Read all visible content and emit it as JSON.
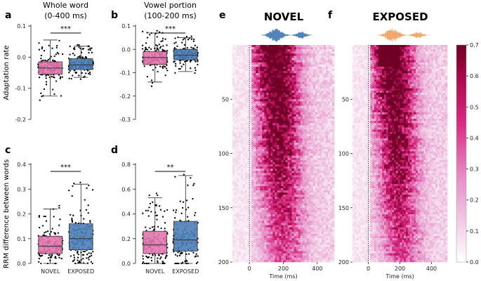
{
  "chart_data": [
    {
      "type": "box",
      "panel": "a",
      "title": "Whole word\n(0-400 ms)",
      "ylabel": "Adaptation rate",
      "ylim": [
        -0.2,
        0.1
      ],
      "yticks": [
        "-0.2",
        "-0.1",
        "0.0",
        "0.1"
      ],
      "ytick_values": [
        -0.2,
        -0.1,
        0.0,
        0.1
      ],
      "categories": [
        "NOVEL",
        "EXPOSED"
      ],
      "boxes": [
        {
          "name": "NOVEL",
          "color": "#E377B0",
          "whisker_low": -0.125,
          "q1": -0.055,
          "median": -0.035,
          "q3": -0.015,
          "whisker_high": 0.055
        },
        {
          "name": "EXPOSED",
          "color": "#4C7FB8",
          "whisker_low": -0.065,
          "q1": -0.04,
          "median": -0.025,
          "q3": -0.005,
          "whisker_high": 0.035
        }
      ],
      "significance": "***"
    },
    {
      "type": "box",
      "panel": "b",
      "title": "Vowel portion\n(100-200 ms)",
      "ylabel": "",
      "ylim": [
        -0.3,
        0.1
      ],
      "yticks": [
        "-0.3",
        "-0.2",
        "-0.1",
        "0.0",
        "0.1"
      ],
      "ytick_values": [
        -0.3,
        -0.2,
        -0.1,
        0.0,
        0.1
      ],
      "categories": [
        "NOVEL",
        "EXPOSED"
      ],
      "boxes": [
        {
          "name": "NOVEL",
          "color": "#E377B0",
          "whisker_low": -0.14,
          "q1": -0.065,
          "median": -0.035,
          "q3": -0.01,
          "whisker_high": 0.07
        },
        {
          "name": "EXPOSED",
          "color": "#4C7FB8",
          "whisker_low": -0.095,
          "q1": -0.045,
          "median": -0.025,
          "q3": 0.0,
          "whisker_high": 0.05
        }
      ],
      "significance": "***"
    },
    {
      "type": "box",
      "panel": "c",
      "title": "",
      "ylabel": "RRM difference between words",
      "ylim": [
        0.0,
        0.4
      ],
      "yticks": [
        "0.0",
        "0.1",
        "0.2",
        "0.3",
        "0.4"
      ],
      "ytick_values": [
        0.0,
        0.1,
        0.2,
        0.3,
        0.4
      ],
      "categories": [
        "NOVEL",
        "EXPOSED"
      ],
      "boxes": [
        {
          "name": "NOVEL",
          "color": "#E377B0",
          "whisker_low": 0.0,
          "q1": 0.04,
          "median": 0.07,
          "q3": 0.11,
          "whisker_high": 0.22
        },
        {
          "name": "EXPOSED",
          "color": "#4C7FB8",
          "whisker_low": 0.0,
          "q1": 0.055,
          "median": 0.1,
          "q3": 0.16,
          "whisker_high": 0.32
        }
      ],
      "significance": "***"
    },
    {
      "type": "box",
      "panel": "d",
      "title": "",
      "ylabel": "",
      "ylim": [
        0.0,
        0.8
      ],
      "yticks": [
        "0.0",
        "0.2",
        "0.4",
        "0.6",
        "0.8"
      ],
      "ytick_values": [
        0.0,
        0.2,
        0.4,
        0.6,
        0.8
      ],
      "categories": [
        "NOVEL",
        "EXPOSED"
      ],
      "boxes": [
        {
          "name": "NOVEL",
          "color": "#E377B0",
          "whisker_low": 0.0,
          "q1": 0.08,
          "median": 0.15,
          "q3": 0.26,
          "whisker_high": 0.53
        },
        {
          "name": "EXPOSED",
          "color": "#4C7FB8",
          "whisker_low": 0.0,
          "q1": 0.1,
          "median": 0.19,
          "q3": 0.34,
          "whisker_high": 0.71
        }
      ],
      "significance": "**"
    },
    {
      "type": "heatmap",
      "panel": "e",
      "title": "NOVEL",
      "xlabel": "Time (ms)",
      "xticks": [
        "0",
        "200",
        "400"
      ],
      "xtick_values": [
        0,
        200,
        400
      ],
      "xlim": [
        -100,
        500
      ],
      "yticks": [
        "50",
        "100",
        "150",
        "200"
      ],
      "ytick_values": [
        50,
        100,
        150,
        200
      ],
      "ylim": [
        0,
        200
      ],
      "waveform_color": "#4C7FB8",
      "onset_ms": 0
    },
    {
      "type": "heatmap",
      "panel": "f",
      "title": "EXPOSED",
      "xlabel": "Time (ms)",
      "xticks": [
        "0",
        "200",
        "400"
      ],
      "xtick_values": [
        0,
        200,
        400
      ],
      "xlim": [
        -100,
        500
      ],
      "yticks": [
        "50",
        "100",
        "150",
        "200"
      ],
      "ytick_values": [
        50,
        100,
        150,
        200
      ],
      "ylim": [
        0,
        200
      ],
      "waveform_color": "#F0A56A",
      "onset_ms": 0
    }
  ],
  "colorbar": {
    "ticks": [
      "0.0",
      "0.1",
      "0.2",
      "0.3",
      "0.4",
      "0.5",
      "0.6",
      "0.7"
    ],
    "tick_values": [
      0.0,
      0.1,
      0.2,
      0.3,
      0.4,
      0.5,
      0.6,
      0.7
    ],
    "range": [
      0.0,
      0.7
    ],
    "color_low": "#FFFFFF",
    "color_high": "#7A0028"
  },
  "panel_labels": [
    "a",
    "b",
    "c",
    "d",
    "e",
    "f"
  ]
}
